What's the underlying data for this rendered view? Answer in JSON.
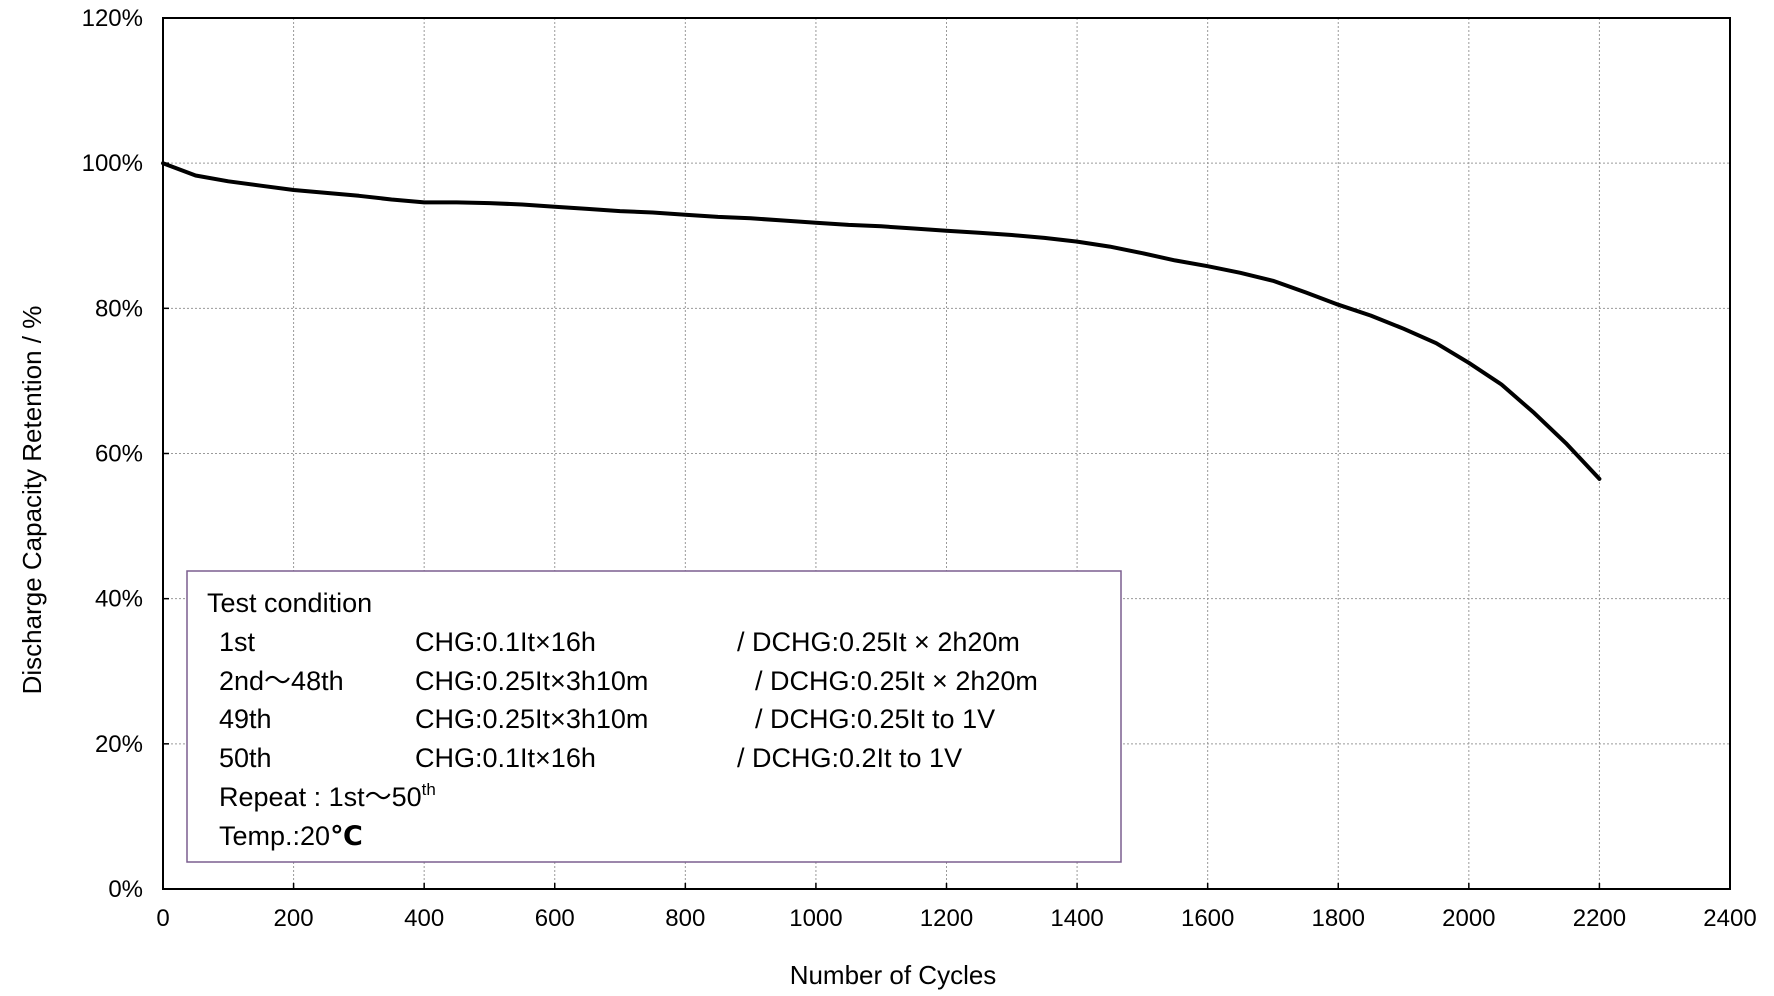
{
  "chart_data": {
    "type": "line",
    "xlabel": "Number of Cycles",
    "ylabel": "Discharge Capacity Retention / %",
    "xlim": [
      0,
      2400
    ],
    "ylim": [
      0,
      120
    ],
    "x_ticks": [
      0,
      200,
      400,
      600,
      800,
      1000,
      1200,
      1400,
      1600,
      1800,
      2000,
      2200,
      2400
    ],
    "x_tick_labels": [
      "0",
      "200",
      "400",
      "600",
      "800",
      "1000",
      "1200",
      "1400",
      "1600",
      "1800",
      "2000",
      "2200",
      "2400"
    ],
    "y_ticks": [
      0,
      20,
      40,
      60,
      80,
      100,
      120
    ],
    "y_tick_labels": [
      "0%",
      "20%",
      "40%",
      "60%",
      "80%",
      "100%",
      "120%"
    ],
    "grid": true,
    "series": [
      {
        "color": "#000000",
        "x": [
          0,
          50,
          100,
          150,
          200,
          250,
          300,
          350,
          400,
          450,
          500,
          550,
          600,
          650,
          700,
          750,
          800,
          850,
          900,
          950,
          1000,
          1050,
          1100,
          1150,
          1200,
          1250,
          1300,
          1350,
          1400,
          1450,
          1500,
          1550,
          1600,
          1650,
          1700,
          1750,
          1800,
          1850,
          1900,
          1950,
          2000,
          2050,
          2100,
          2150,
          2200
        ],
        "y": [
          100,
          98.3,
          97.5,
          96.9,
          96.3,
          95.9,
          95.5,
          95.0,
          94.6,
          94.6,
          94.5,
          94.3,
          94.0,
          93.7,
          93.4,
          93.2,
          92.9,
          92.6,
          92.4,
          92.1,
          91.8,
          91.5,
          91.3,
          91.0,
          90.7,
          90.4,
          90.1,
          89.7,
          89.2,
          88.5,
          87.6,
          86.6,
          85.8,
          84.9,
          83.8,
          82.2,
          80.5,
          79.0,
          77.2,
          75.2,
          72.5,
          69.5,
          65.6,
          61.3,
          56.5
        ]
      }
    ],
    "legend": {
      "placement": "bottom-left",
      "title": "Test condition",
      "rows": [
        {
          "step": "1st",
          "charge": "CHG:0.1It×16h",
          "discharge": "/ DCHG:0.25It  ×  2h20m"
        },
        {
          "step": "2nd〜48th",
          "charge": "CHG:0.25It×3h10m",
          "discharge": "/ DCHG:0.25It  ×  2h20m"
        },
        {
          "step": "49th",
          "charge": "CHG:0.25It×3h10m",
          "discharge": "/ DCHG:0.25It   to 1V"
        },
        {
          "step": "50th",
          "charge": "CHG:0.1It×16h",
          "discharge": "/ DCHG:0.2It   to 1V"
        }
      ],
      "repeat_label": "Repeat : 1st〜50",
      "repeat_sup": "th",
      "temp_label": "Temp.:20",
      "temp_unit": "℃",
      "border_color": "#7b5f8f"
    }
  }
}
